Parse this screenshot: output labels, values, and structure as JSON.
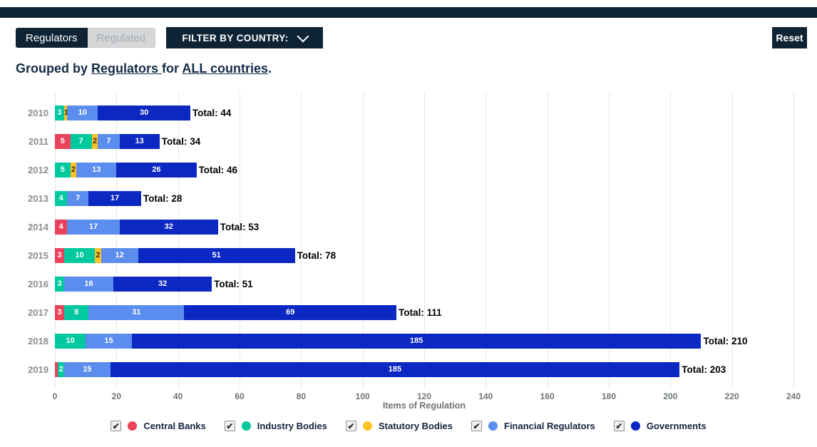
{
  "header": {
    "toggle": {
      "active_label": "Regulators",
      "inactive_label": "Regulated"
    },
    "filter_button_label": "FILTER BY COUNTRY:",
    "reset_label": "Reset",
    "subtitle": {
      "prefix": "Grouped by ",
      "link_group": "Regulators ",
      "middle": "for ",
      "link_country": "ALL countries",
      "suffix": "."
    }
  },
  "chart_data": {
    "type": "bar",
    "orientation": "horizontal",
    "stacked": true,
    "xlabel": "Items of Regulation",
    "xlim": [
      0,
      240
    ],
    "xticks": [
      0,
      20,
      40,
      60,
      80,
      100,
      120,
      140,
      160,
      180,
      200,
      220,
      240
    ],
    "grid": true,
    "categories": [
      "2010",
      "2011",
      "2012",
      "2013",
      "2014",
      "2015",
      "2016",
      "2017",
      "2018",
      "2019"
    ],
    "series": [
      {
        "name": "Central Banks",
        "color": "#e8435a",
        "label_color": "#ffffff",
        "checked": true,
        "values": [
          0,
          5,
          0,
          0,
          4,
          3,
          0,
          3,
          0,
          1
        ],
        "labels": [
          "",
          "5",
          "",
          "",
          "4",
          "3",
          "",
          "3",
          "",
          ""
        ]
      },
      {
        "name": "Industry Bodies",
        "color": "#00c9a0",
        "label_color": "#ffffff",
        "checked": true,
        "values": [
          3,
          7,
          5,
          4,
          0,
          10,
          3,
          8,
          10,
          2
        ],
        "labels": [
          "3",
          "7",
          "5",
          "4",
          "",
          "10",
          "3",
          "8",
          "10",
          "2"
        ]
      },
      {
        "name": "Statutory Bodies",
        "color": "#ffc226",
        "label_color": "#33300a",
        "checked": true,
        "values": [
          1,
          2,
          2,
          0,
          0,
          2,
          0,
          0,
          0,
          0
        ],
        "labels": [
          "1",
          "2",
          "2",
          "",
          "",
          "2",
          "",
          "",
          "",
          ""
        ]
      },
      {
        "name": "Financial Regulators",
        "color": "#5b8def",
        "label_color": "#ffffff",
        "checked": true,
        "values": [
          10,
          7,
          13,
          7,
          17,
          12,
          16,
          31,
          15,
          15
        ],
        "labels": [
          "10",
          "7",
          "13",
          "7",
          "17",
          "12",
          "16",
          "31",
          "15",
          "15"
        ]
      },
      {
        "name": "Governments",
        "color": "#0b28c2",
        "label_color": "#ffffff",
        "checked": true,
        "values": [
          30,
          13,
          26,
          17,
          32,
          51,
          32,
          69,
          185,
          185
        ],
        "labels": [
          "30",
          "13",
          "26",
          "17",
          "32",
          "51",
          "32",
          "69",
          "185",
          "185"
        ]
      }
    ],
    "totals": [
      44,
      34,
      46,
      28,
      53,
      78,
      51,
      111,
      210,
      203
    ],
    "total_prefix": "Total: ",
    "legend_position": "bottom",
    "checkmark": "✔"
  }
}
